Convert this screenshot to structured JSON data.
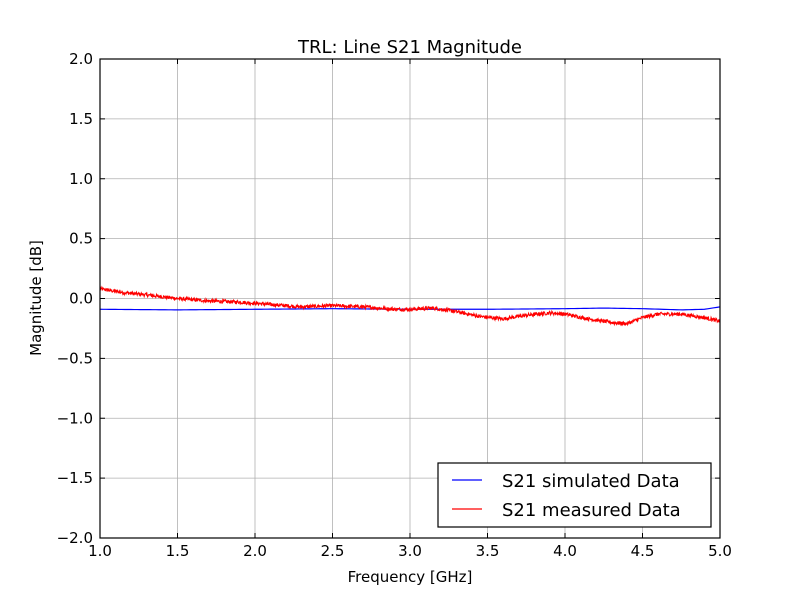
{
  "chart_data": {
    "type": "line",
    "title": "TRL: Line S21 Magnitude",
    "xlabel": "Frequency [GHz]",
    "ylabel": "Magnitude [dB]",
    "xlim": [
      1.0,
      5.0
    ],
    "ylim": [
      -2.0,
      2.0
    ],
    "grid": true,
    "legend_position": "lower-right",
    "x_ticks": [
      "1.0",
      "1.5",
      "2.0",
      "2.5",
      "3.0",
      "3.5",
      "4.0",
      "4.5",
      "5.0"
    ],
    "y_ticks": [
      "2.0",
      "1.5",
      "1.0",
      "0.5",
      "0.0",
      "−0.5",
      "−1.0",
      "−1.5",
      "−2.0"
    ],
    "series": [
      {
        "name": "S21 simulated Data",
        "color": "#0000ff",
        "x": [
          1.0,
          1.5,
          2.0,
          2.5,
          3.0,
          3.5,
          4.0,
          4.25,
          4.5,
          4.75,
          4.9,
          5.0
        ],
        "y": [
          -0.09,
          -0.095,
          -0.09,
          -0.085,
          -0.09,
          -0.09,
          -0.085,
          -0.08,
          -0.085,
          -0.095,
          -0.09,
          -0.07
        ]
      },
      {
        "name": "S21 measured Data",
        "color": "#ff0000",
        "noise": 0.015,
        "x": [
          1.0,
          1.15,
          1.3,
          1.5,
          1.7,
          1.9,
          2.1,
          2.3,
          2.5,
          2.7,
          2.9,
          3.0,
          3.15,
          3.3,
          3.45,
          3.6,
          3.75,
          3.9,
          4.0,
          4.15,
          4.3,
          4.4,
          4.5,
          4.6,
          4.75,
          4.9,
          5.0
        ],
        "y": [
          0.08,
          0.05,
          0.03,
          0.0,
          -0.02,
          -0.03,
          -0.05,
          -0.07,
          -0.06,
          -0.07,
          -0.09,
          -0.09,
          -0.08,
          -0.11,
          -0.15,
          -0.17,
          -0.14,
          -0.12,
          -0.13,
          -0.17,
          -0.2,
          -0.21,
          -0.16,
          -0.13,
          -0.13,
          -0.16,
          -0.19
        ]
      }
    ]
  }
}
